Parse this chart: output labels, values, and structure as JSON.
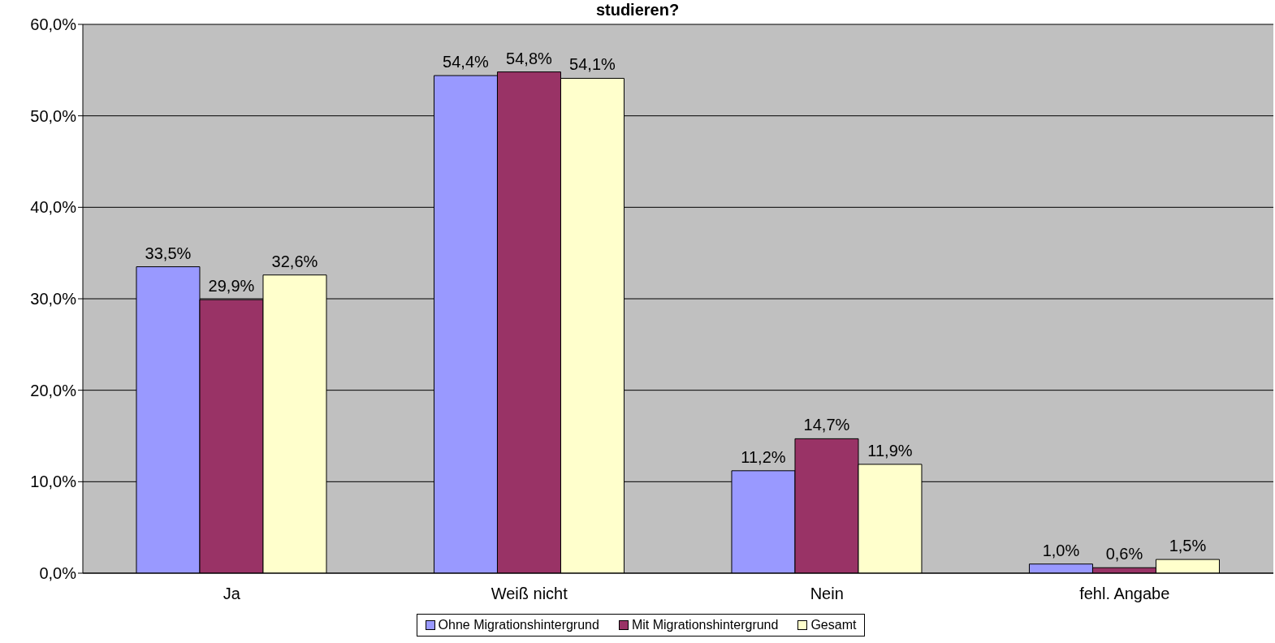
{
  "chart_data": {
    "type": "bar",
    "title": "studieren?",
    "categories": [
      "Ja",
      "Weiß nicht",
      "Nein",
      "fehl. Angabe"
    ],
    "series": [
      {
        "name": "Ohne Migrationshintergrund",
        "color": "#9999ff",
        "values": [
          33.5,
          54.4,
          11.2,
          1.0
        ],
        "value_labels": [
          "33,5%",
          "54,4%",
          "11,2%",
          "1,0%"
        ]
      },
      {
        "name": "Mit Migrationshintergrund",
        "color": "#993366",
        "values": [
          29.9,
          54.8,
          14.7,
          0.6
        ],
        "value_labels": [
          "29,9%",
          "54,8%",
          "14,7%",
          "0,6%"
        ]
      },
      {
        "name": "Gesamt",
        "color": "#ffffcc",
        "values": [
          32.6,
          54.1,
          11.9,
          1.5
        ],
        "value_labels": [
          "32,6%",
          "54,1%",
          "11,9%",
          "1,5%"
        ]
      }
    ],
    "ylim": [
      0,
      60
    ],
    "yticks": [
      {
        "value": 0,
        "label": "0,0%"
      },
      {
        "value": 10,
        "label": "10,0%"
      },
      {
        "value": 20,
        "label": "20,0%"
      },
      {
        "value": 30,
        "label": "30,0%"
      },
      {
        "value": 40,
        "label": "40,0%"
      },
      {
        "value": 50,
        "label": "50,0%"
      },
      {
        "value": 60,
        "label": "60,0%"
      }
    ],
    "grid": "y",
    "legend": "bottom"
  }
}
